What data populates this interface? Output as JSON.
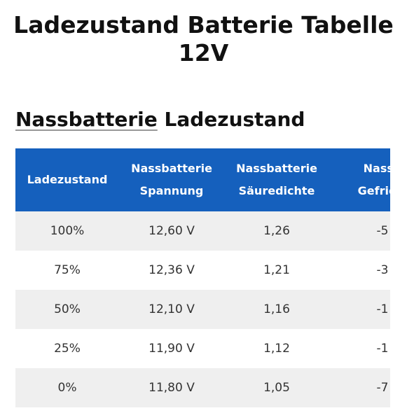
{
  "header": {
    "title_line1": "Ladezustand Batterie Tabelle",
    "title_line2": "12V"
  },
  "section": {
    "title_link": "Nassbatterie",
    "title_rest": "Ladezustand"
  },
  "table": {
    "columns": [
      [
        "Ladezustand"
      ],
      [
        "Nassbatterie",
        "Spannung"
      ],
      [
        "Nassbatterie",
        "Säuredichte"
      ],
      [
        "Nassb",
        "Gefriert"
      ]
    ],
    "rows": [
      [
        "100%",
        "12,60 V",
        "1,26",
        "-5"
      ],
      [
        "75%",
        "12,36 V",
        "1,21",
        "-3"
      ],
      [
        "50%",
        "12,10 V",
        "1,16",
        "-1"
      ],
      [
        "25%",
        "11,90 V",
        "1,12",
        "-1"
      ],
      [
        "0%",
        "11,80 V",
        "1,05",
        "-7"
      ]
    ]
  }
}
